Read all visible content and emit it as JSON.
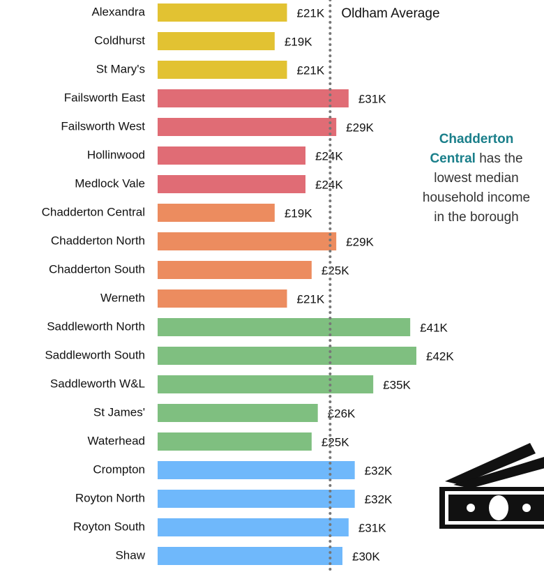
{
  "chart_data": {
    "type": "barh",
    "categories": [
      "Alexandra",
      "Coldhurst",
      "St Mary's",
      "Failsworth East",
      "Failsworth West",
      "Hollinwood",
      "Medlock Vale",
      "Chadderton Central",
      "Chadderton North",
      "Chadderton South",
      "Werneth",
      "Saddleworth North",
      "Saddleworth South",
      "Saddleworth W&L",
      "St James'",
      "Waterhead",
      "Crompton",
      "Royton North",
      "Royton South",
      "Shaw"
    ],
    "values": [
      21,
      19,
      21,
      31,
      29,
      24,
      24,
      19,
      29,
      25,
      21,
      41,
      42,
      35,
      26,
      25,
      32,
      32,
      31,
      30
    ],
    "value_labels": [
      "£21K",
      "£19K",
      "£21K",
      "£31K",
      "£29K",
      "£24K",
      "£24K",
      "£19K",
      "£29K",
      "£25K",
      "£21K",
      "£41K",
      "£42K",
      "£35K",
      "£26K",
      "£25K",
      "£32K",
      "£32K",
      "£31K",
      "£30K"
    ],
    "colors": [
      "#e2c232",
      "#e2c232",
      "#e2c232",
      "#e06c75",
      "#e06c75",
      "#e06c75",
      "#e06c75",
      "#ec8c5f",
      "#ec8c5f",
      "#ec8c5f",
      "#ec8c5f",
      "#7fbf80",
      "#7fbf80",
      "#7fbf80",
      "#7fbf80",
      "#7fbf80",
      "#6fb8fb",
      "#6fb8fb",
      "#6fb8fb",
      "#6fb8fb"
    ],
    "xlim": [
      0,
      42
    ],
    "average": {
      "value": 28,
      "label": "Oldham Average"
    },
    "annotation_lines": [
      {
        "bold": "Chadderton"
      },
      {
        "bold": "Central",
        "text": "has the"
      },
      {
        "text": "lowest median"
      },
      {
        "text": "household income"
      },
      {
        "text": "in the borough"
      }
    ]
  }
}
